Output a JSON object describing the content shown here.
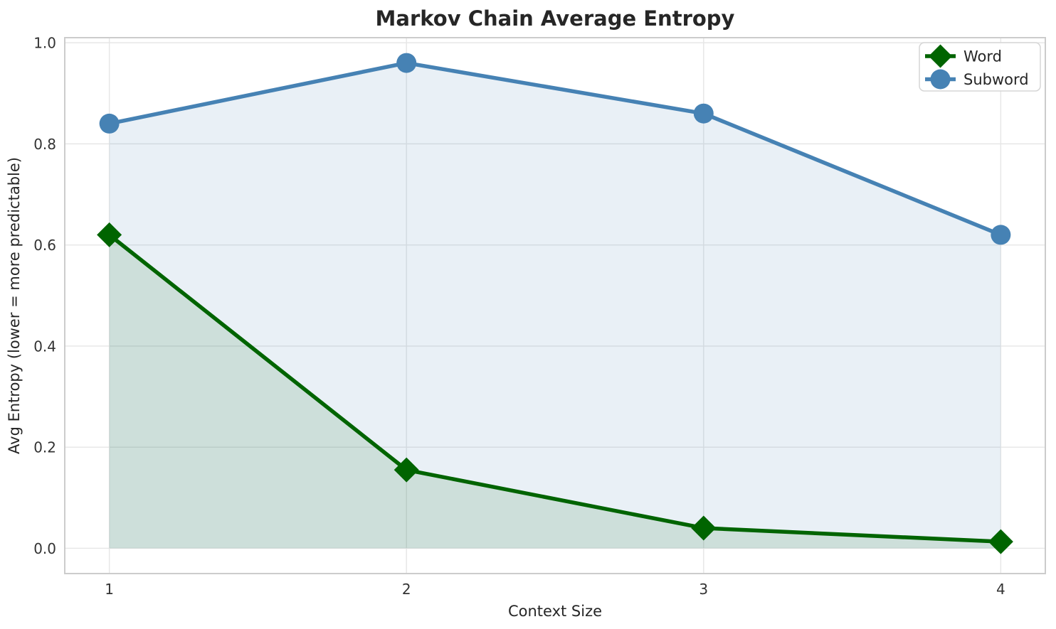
{
  "chart_data": {
    "type": "line",
    "title": "Markov Chain Average Entropy",
    "xlabel": "Context Size",
    "ylabel": "Avg Entropy (lower = more predictable)",
    "x": [
      1,
      2,
      3,
      4
    ],
    "xticks": [
      "1",
      "2",
      "3",
      "4"
    ],
    "yticks": [
      "0.0",
      "0.2",
      "0.4",
      "0.6",
      "0.8",
      "1.0"
    ],
    "ytick_values": [
      0.0,
      0.2,
      0.4,
      0.6,
      0.8,
      1.0
    ],
    "xlim": [
      0.85,
      4.15
    ],
    "ylim": [
      -0.05,
      1.01
    ],
    "grid": true,
    "legend_position": "upper right",
    "fill_baseline": 0,
    "series": [
      {
        "name": "Word",
        "marker": "diamond",
        "color": "#006400",
        "fill_opacity": 0.12,
        "values": [
          0.62,
          0.155,
          0.04,
          0.013
        ]
      },
      {
        "name": "Subword",
        "marker": "circle",
        "color": "#4682b4",
        "fill_opacity": 0.12,
        "values": [
          0.84,
          0.96,
          0.86,
          0.62
        ]
      }
    ]
  },
  "styles": {
    "background": "#ffffff",
    "grid_color": "#e6e6e6",
    "spine_color": "#cccccc",
    "tick_label_color": "#333333",
    "text_color": "#262626",
    "legend_border_color": "#d5d5d5",
    "legend_background": "#ffffff"
  }
}
